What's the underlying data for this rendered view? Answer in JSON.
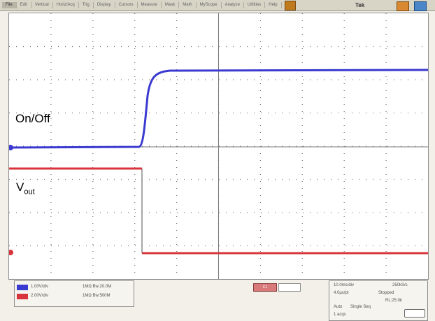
{
  "menu": {
    "items": [
      "File",
      "Edit",
      "Vertical",
      "Horiz/Acq",
      "Trig",
      "Display",
      "Cursors",
      "Measure",
      "Mask",
      "Math",
      "MyScope",
      "Analyze",
      "Utilities",
      "Help"
    ],
    "selected_index": 0
  },
  "brand": "Tek",
  "traces": {
    "onoff_label": "On/Off",
    "vout_label_main": "V",
    "vout_label_sub": "out",
    "colors": {
      "ch1": "#3a3ad0",
      "ch2": "#d8343c",
      "grid": "#7a7a7a"
    }
  },
  "channels": [
    {
      "badge_color": "#3a3ad0",
      "scale": "1.00V/div",
      "extra": "1MΩ Bw:20.0M"
    },
    {
      "badge_color": "#d8343c",
      "scale": "2.00V/div",
      "extra": "1MΩ Bw:500M"
    }
  ],
  "trigger": {
    "chip": "C1"
  },
  "acquisition": {
    "line1": "10.0ms/div",
    "line2": "250kS/s",
    "line3": "4.0µs/pt",
    "line4": "Stopped",
    "line5": "Auto",
    "line6": "Single Seq",
    "line7": "1 acqs",
    "line8": "RL:25.0k"
  }
}
